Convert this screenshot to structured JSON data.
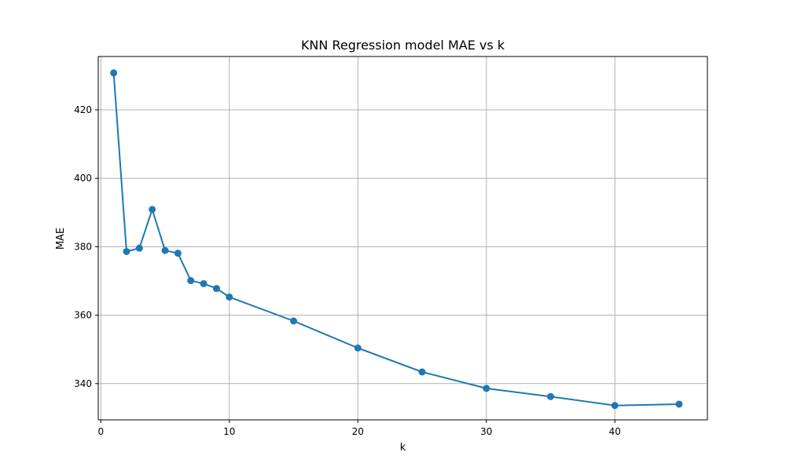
{
  "chart_data": {
    "type": "line",
    "title": "KNN Regression model MAE vs k",
    "xlabel": "k",
    "ylabel": "MAE",
    "xlim": [
      -0.2,
      47.2
    ],
    "ylim": [
      329.4,
      435.6
    ],
    "xticks": [
      0,
      10,
      20,
      30,
      40
    ],
    "yticks": [
      340,
      360,
      380,
      400,
      420
    ],
    "grid": true,
    "legend": "none",
    "colors": {
      "line": "#1f77b4",
      "grid": "#b0b0b0",
      "axes": "#000000"
    },
    "series": [
      {
        "x": [
          1,
          2,
          3,
          4,
          5,
          6,
          7,
          8,
          9,
          10,
          15,
          20,
          25,
          30,
          35,
          40,
          45
        ],
        "y": [
          430.8,
          378.6,
          379.6,
          390.9,
          378.9,
          378.1,
          370.1,
          369.2,
          367.8,
          365.3,
          358.3,
          350.4,
          343.4,
          338.6,
          336.2,
          333.6,
          334.0
        ]
      }
    ]
  }
}
